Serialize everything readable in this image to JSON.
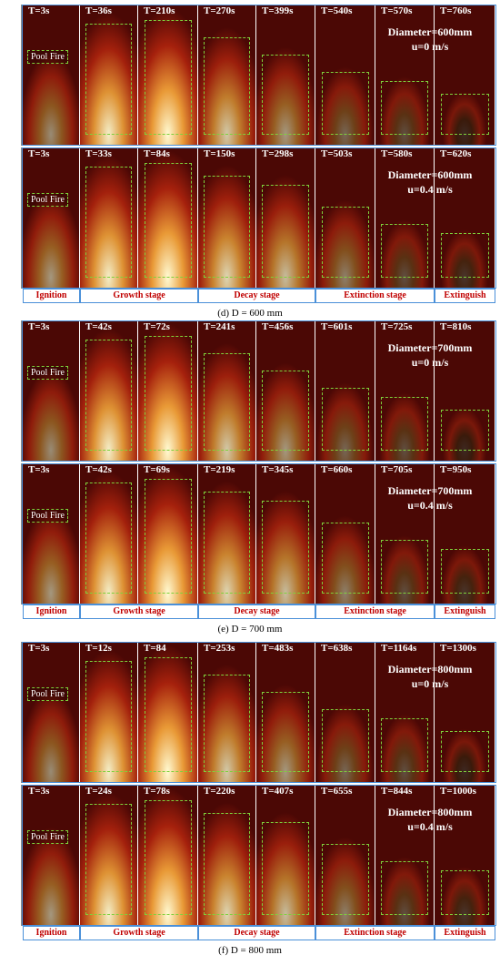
{
  "panels": [
    {
      "rows": [
        {
          "times": [
            "T=3s",
            "T=36s",
            "T=210s",
            "T=270s",
            "T=399s",
            "T=540s",
            "T=570s",
            "T=760s"
          ],
          "diameter": "Diameter=600mm",
          "velocity": "u=0 m/s",
          "pool_fire": "Pool Fire"
        },
        {
          "times": [
            "T=3s",
            "T=33s",
            "T=84s",
            "T=150s",
            "T=298s",
            "T=503s",
            "T=580s",
            "T=620s"
          ],
          "diameter": "Diameter=600mm",
          "velocity": "u=0.4 m/s",
          "pool_fire": "Pool Fire"
        }
      ],
      "stages": [
        "Ignition",
        "Growth stage",
        "Decay stage",
        "Extinction stage",
        "Extinguish"
      ],
      "caption": "(d) D = 600 mm"
    },
    {
      "rows": [
        {
          "times": [
            "T=3s",
            "T=42s",
            "T=72s",
            "T=241s",
            "T=456s",
            "T=601s",
            "T=725s",
            "T=810s"
          ],
          "diameter": "Diameter=700mm",
          "velocity": "u=0 m/s",
          "pool_fire": "Pool Fire"
        },
        {
          "times": [
            "T=3s",
            "T=42s",
            "T=69s",
            "T=219s",
            "T=345s",
            "T=660s",
            "T=705s",
            "T=950s"
          ],
          "diameter": "Diameter=700mm",
          "velocity": "u=0.4 m/s",
          "pool_fire": "Pool Fire"
        }
      ],
      "stages": [
        "Ignition",
        "Growth stage",
        "Decay stage",
        "Extinction stage",
        "Extinguish"
      ],
      "caption": "(e) D = 700 mm"
    },
    {
      "rows": [
        {
          "times": [
            "T=3s",
            "T=12s",
            "T=84",
            "T=253s",
            "T=483s",
            "T=638s",
            "T=1164s",
            "T=1300s"
          ],
          "diameter": "Diameter=800mm",
          "velocity": "u=0 m/s",
          "pool_fire": "Pool Fire"
        },
        {
          "times": [
            "T=3s",
            "T=24s",
            "T=78s",
            "T=220s",
            "T=407s",
            "T=655s",
            "T=844s",
            "T=1000s"
          ],
          "diameter": "Diameter=800mm",
          "velocity": "u=0.4 m/s",
          "pool_fire": "Pool Fire"
        }
      ],
      "stages": [
        "Ignition",
        "Growth stage",
        "Decay stage",
        "Extinction stage",
        "Extinguish"
      ],
      "caption": "(f) D = 800 mm"
    }
  ]
}
